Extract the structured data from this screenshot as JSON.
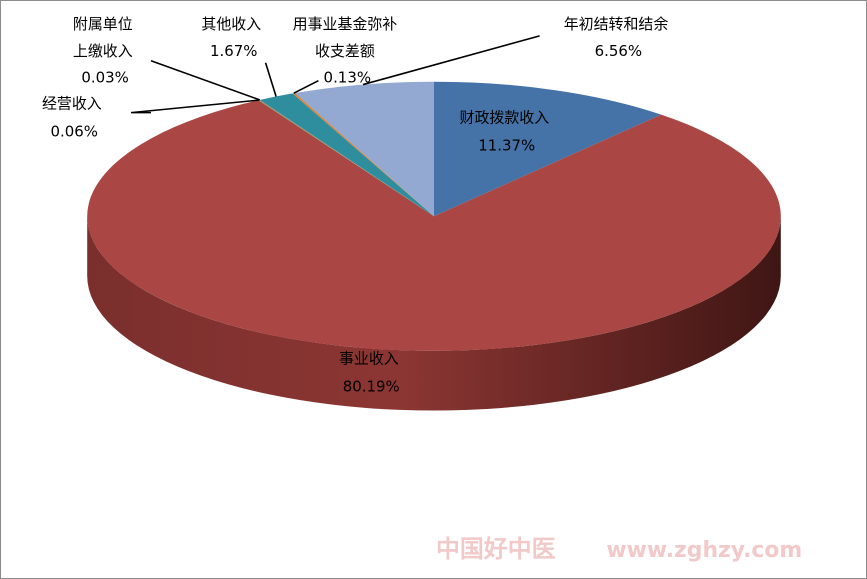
{
  "chart_data": {
    "type": "pie",
    "style": "3d",
    "slices": [
      {
        "name": "财政拨款收入",
        "value": 11.37,
        "label": "11.37%",
        "color": "#4572a7"
      },
      {
        "name": "事业收入",
        "value": 80.19,
        "label": "80.19%",
        "color": "#aa4643"
      },
      {
        "name": "经营收入",
        "value": 0.06,
        "label": "0.06%",
        "color": "#89a54e"
      },
      {
        "name": "附属单位上缴收入",
        "value": 0.03,
        "label": "0.03%",
        "color": "#71588f"
      },
      {
        "name": "其他收入",
        "value": 1.67,
        "label": "1.67%",
        "color": "#2e8e9e"
      },
      {
        "name": "用事业基金弥补收支差额",
        "value": 0.13,
        "label": "0.13%",
        "color": "#db843d"
      },
      {
        "name": "年初结转和结余",
        "value": 6.56,
        "label": "6.56%",
        "color": "#94a9d1"
      }
    ],
    "label_text": {
      "s0": [
        "财政拨款收入",
        "11.37%"
      ],
      "s1": [
        "事业收入",
        "80.19%"
      ],
      "s2": [
        "经营收入",
        "0.06%"
      ],
      "s3": [
        "附属单位",
        "上缴收入",
        "0.03%"
      ],
      "s4": [
        "其他收入",
        "1.67%"
      ],
      "s5": [
        "用事业基金弥补",
        "收支差额",
        "0.13%"
      ],
      "s6": [
        "年初结转和结余",
        "6.56%"
      ]
    }
  },
  "watermark": {
    "cn": "中国好中医",
    "url": "www.zghzy.com",
    "color": "#f2c9c9"
  }
}
